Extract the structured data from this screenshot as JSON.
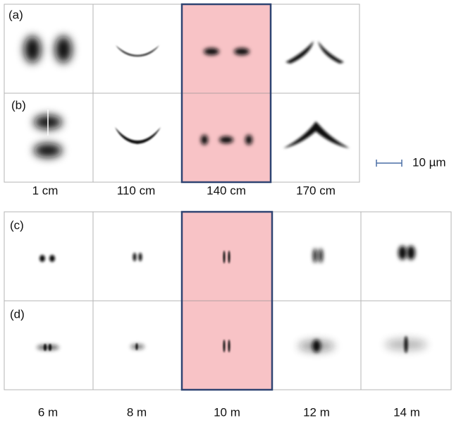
{
  "row_labels": [
    "(a)",
    "(b)",
    "(c)",
    "(d)"
  ],
  "top_columns": [
    "1 cm",
    "110 cm",
    "140 cm",
    "170 cm"
  ],
  "scale_bar": "10 µm",
  "bottom_columns": [
    "6 m",
    "8 m",
    "10 m",
    "12 m",
    "14 m"
  ]
}
